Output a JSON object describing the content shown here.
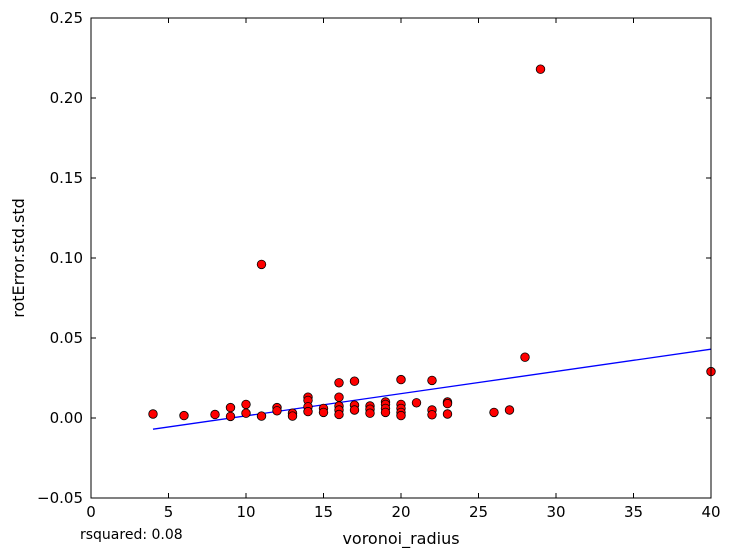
{
  "chart_data": {
    "type": "scatter",
    "xlabel": "voronoi_radius",
    "ylabel": "rotError.std.std",
    "xlim": [
      0,
      40
    ],
    "ylim": [
      -0.05,
      0.25
    ],
    "xticks": [
      0,
      5,
      10,
      15,
      20,
      25,
      30,
      35,
      40
    ],
    "yticks": [
      -0.05,
      0.0,
      0.05,
      0.1,
      0.15,
      0.2,
      0.25
    ],
    "xtick_labels": [
      "0",
      "5",
      "10",
      "15",
      "20",
      "25",
      "30",
      "35",
      "40"
    ],
    "ytick_labels": [
      "−0.05",
      "0.00",
      "0.05",
      "0.10",
      "0.15",
      "0.20",
      "0.25"
    ],
    "grid": false,
    "marker_color": "#ff0000",
    "line_color": "#0000ff",
    "points": [
      [
        4,
        0.0025
      ],
      [
        6,
        0.0015
      ],
      [
        8,
        0.0022
      ],
      [
        9,
        0.0065
      ],
      [
        9,
        0.001
      ],
      [
        10,
        0.0085
      ],
      [
        10,
        0.003
      ],
      [
        11,
        0.0012
      ],
      [
        11,
        0.096
      ],
      [
        12,
        0.0065
      ],
      [
        12,
        0.0045
      ],
      [
        13,
        0.003
      ],
      [
        13,
        0.0012
      ],
      [
        14,
        0.013
      ],
      [
        14,
        0.011
      ],
      [
        14,
        0.007
      ],
      [
        14,
        0.004
      ],
      [
        15,
        0.006
      ],
      [
        15,
        0.0035
      ],
      [
        16,
        0.022
      ],
      [
        16,
        0.013
      ],
      [
        16,
        0.0075
      ],
      [
        16,
        0.005
      ],
      [
        16,
        0.0022
      ],
      [
        17,
        0.023
      ],
      [
        17,
        0.008
      ],
      [
        17,
        0.005
      ],
      [
        18,
        0.0075
      ],
      [
        18,
        0.0055
      ],
      [
        18,
        0.003
      ],
      [
        19,
        0.01
      ],
      [
        19,
        0.0085
      ],
      [
        19,
        0.006
      ],
      [
        19,
        0.0035
      ],
      [
        20,
        0.024
      ],
      [
        20,
        0.0085
      ],
      [
        20,
        0.006
      ],
      [
        20,
        0.0035
      ],
      [
        20,
        0.0015
      ],
      [
        21,
        0.0095
      ],
      [
        22,
        0.0235
      ],
      [
        22,
        0.005
      ],
      [
        22,
        0.002
      ],
      [
        23,
        0.01
      ],
      [
        23,
        0.009
      ],
      [
        23,
        0.0025
      ],
      [
        26,
        0.0035
      ],
      [
        27,
        0.005
      ],
      [
        28,
        0.038
      ],
      [
        29,
        0.218
      ],
      [
        40,
        0.029
      ]
    ],
    "fit_line": {
      "x": [
        4,
        40
      ],
      "y": [
        -0.007,
        0.043
      ]
    },
    "annotation": "rsquared: 0.08"
  }
}
